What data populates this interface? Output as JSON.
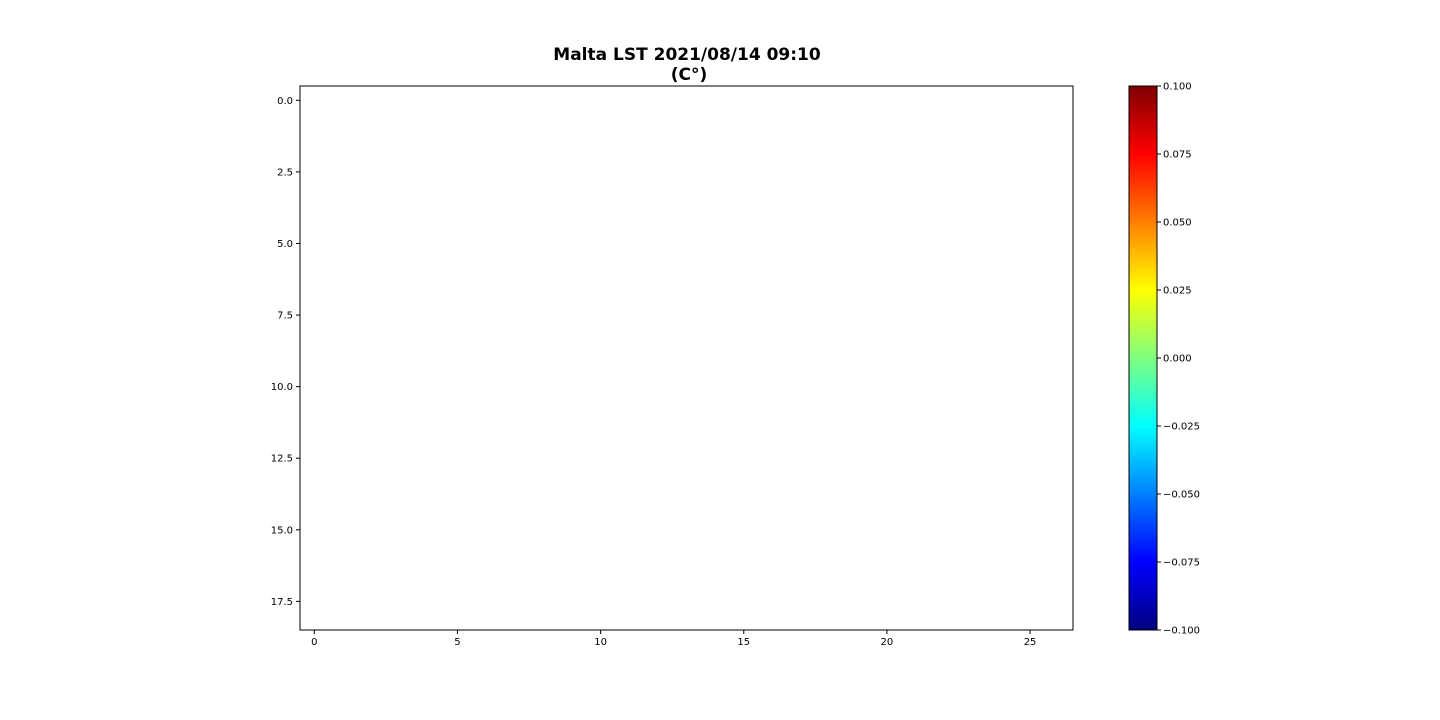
{
  "chart_data": {
    "type": "heatmap",
    "title_line1": "Malta LST 2021/08/14 09:10",
    "title_line2": "(C°)",
    "xlabel": "",
    "ylabel": "",
    "x_ticks": [
      0,
      5,
      10,
      15,
      20,
      25
    ],
    "x_tick_labels": [
      "0",
      "5",
      "10",
      "15",
      "20",
      "25"
    ],
    "xlim": [
      -0.5,
      26.5
    ],
    "y_ticks": [
      0.0,
      2.5,
      5.0,
      7.5,
      10.0,
      12.5,
      15.0,
      17.5
    ],
    "y_tick_labels": [
      "0.0",
      "2.5",
      "5.0",
      "7.5",
      "10.0",
      "12.5",
      "15.0",
      "17.5"
    ],
    "ylim": [
      18.5,
      -0.5
    ],
    "grid": false,
    "values": "all cells empty (NaN)",
    "colorbar": {
      "colormap": "jet",
      "range": [
        -0.1,
        0.1
      ],
      "ticks": [
        0.1,
        0.075,
        0.05,
        0.025,
        0.0,
        -0.025,
        -0.05,
        -0.075,
        -0.1
      ],
      "tick_labels": [
        "0.100",
        "0.075",
        "0.050",
        "0.025",
        "0.000",
        "−0.025",
        "−0.050",
        "−0.075",
        "−0.100"
      ],
      "colors": [
        "#00007f",
        "#0000ff",
        "#007fff",
        "#00ffff",
        "#7fff7f",
        "#ffff00",
        "#ff7f00",
        "#ff0000",
        "#7f0000"
      ]
    }
  }
}
